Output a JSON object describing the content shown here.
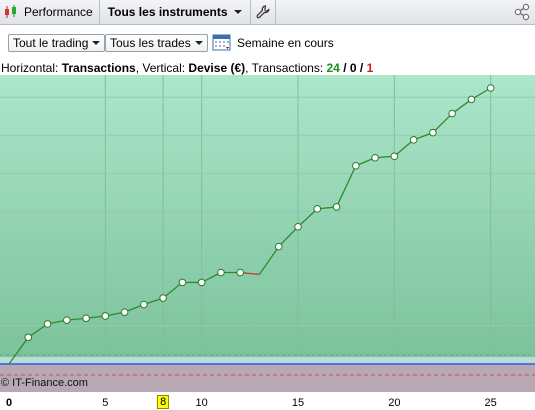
{
  "toolbar": {
    "tab_label": "Performance",
    "instrument_label": "Tous les instruments",
    "icons": [
      "candlestick-icon",
      "wrench-icon",
      "share-icon"
    ]
  },
  "filters": {
    "trading_label": "Tout le trading",
    "trades_label": "Tous les trades",
    "period_label": "Semaine en cours"
  },
  "info": {
    "prefix": "Horizontal: ",
    "h_value": "Transactions",
    "sep": ", Vertical: ",
    "v_value": "Devise (€)",
    "tx_prefix": ", Transactions: ",
    "total": "24",
    "slash1": " / ",
    "zero": "0",
    "slash2": " / ",
    "neg": "1"
  },
  "watermark": "© IT-Finance.com",
  "colors": {
    "line": "#2e8b2e",
    "loss_segment": "#c0392b",
    "zero_line": "#3355dd",
    "background_top": "#a9e4c8",
    "background_bottom": "#7fc49f"
  },
  "chart_data": {
    "type": "line",
    "x": [
      0,
      1,
      2,
      3,
      4,
      5,
      6,
      7,
      8,
      9,
      10,
      11,
      12,
      13,
      14,
      15,
      16,
      17,
      18,
      19,
      20,
      21,
      22,
      23,
      24,
      25
    ],
    "y": [
      0,
      7,
      10.5,
      11.5,
      12,
      12.6,
      13.6,
      15.6,
      17.3,
      21.4,
      21.4,
      24,
      24,
      23.5,
      30.8,
      36,
      40.7,
      41.2,
      52,
      54.1,
      54.5,
      58.8,
      60.7,
      65.7,
      69.4,
      72.4
    ],
    "markers": [
      true,
      true,
      true,
      true,
      true,
      true,
      true,
      true,
      true,
      true,
      true,
      true,
      true,
      false,
      true,
      true,
      true,
      true,
      true,
      true,
      true,
      true,
      true,
      true,
      true,
      true
    ],
    "xlabel": "Transactions",
    "ylabel": "Devise (€)",
    "xticks": [
      "0",
      "5",
      "8",
      "10",
      "15",
      "20",
      "25"
    ],
    "highlighted_tick": "8",
    "xlim": [
      0,
      27.3
    ],
    "ylim": [
      -5,
      72.4
    ],
    "grid": true
  }
}
